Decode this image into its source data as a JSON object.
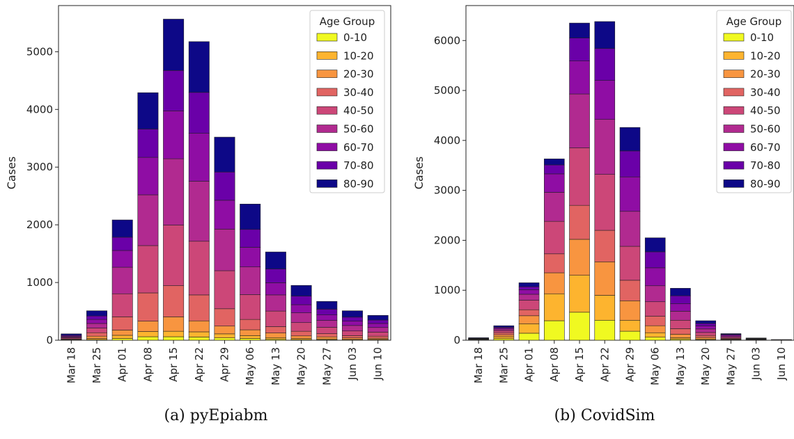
{
  "captions": {
    "a": "(a) pyEpiabm",
    "b": "(b) CovidSim"
  },
  "chart_data": [
    {
      "type": "bar",
      "stacked": true,
      "title": "",
      "xlabel": "",
      "ylabel": "Cases",
      "ylim": [
        0,
        5800
      ],
      "yticks": [
        0,
        1000,
        2000,
        3000,
        4000,
        5000
      ],
      "categories": [
        "Mar 18",
        "Mar 25",
        "Apr 01",
        "Apr 08",
        "Apr 15",
        "Apr 22",
        "Apr 29",
        "May 06",
        "May 13",
        "May 20",
        "May 27",
        "Jun 03",
        "Jun 10"
      ],
      "legend": {
        "title": "Age Group",
        "position": "top-right"
      },
      "colors": [
        "#f0f921",
        "#fdb42f",
        "#f89540",
        "#e16462",
        "#cc4778",
        "#b12a90",
        "#8f0da4",
        "#6a00a8",
        "#0d0887"
      ],
      "series": [
        {
          "name": "0-10",
          "values": [
            2,
            10,
            30,
            60,
            60,
            55,
            40,
            30,
            15,
            10,
            8,
            5,
            5
          ]
        },
        {
          "name": "10-20",
          "values": [
            5,
            20,
            55,
            90,
            95,
            90,
            70,
            50,
            30,
            20,
            15,
            10,
            10
          ]
        },
        {
          "name": "20-30",
          "values": [
            8,
            40,
            90,
            180,
            250,
            190,
            135,
            100,
            80,
            45,
            35,
            25,
            20
          ]
        },
        {
          "name": "30-40",
          "values": [
            10,
            60,
            230,
            490,
            540,
            450,
            300,
            180,
            110,
            80,
            55,
            40,
            35
          ]
        },
        {
          "name": "40-50",
          "values": [
            15,
            80,
            400,
            820,
            1050,
            930,
            660,
            430,
            270,
            150,
            110,
            80,
            70
          ]
        },
        {
          "name": "50-60",
          "values": [
            15,
            80,
            460,
            880,
            1150,
            1040,
            720,
            480,
            280,
            170,
            120,
            95,
            80
          ]
        },
        {
          "name": "60-70",
          "values": [
            15,
            70,
            290,
            650,
            830,
            830,
            500,
            340,
            210,
            140,
            95,
            75,
            70
          ]
        },
        {
          "name": "70-80",
          "values": [
            15,
            60,
            230,
            490,
            700,
            710,
            490,
            310,
            240,
            150,
            100,
            70,
            60
          ]
        },
        {
          "name": "80-90",
          "values": [
            25,
            90,
            300,
            630,
            890,
            880,
            605,
            440,
            295,
            185,
            135,
            110,
            80
          ]
        }
      ]
    },
    {
      "type": "bar",
      "stacked": true,
      "title": "",
      "xlabel": "",
      "ylabel": "Cases",
      "ylim": [
        0,
        6700
      ],
      "yticks": [
        0,
        1000,
        2000,
        3000,
        4000,
        5000,
        6000
      ],
      "categories": [
        "Mar 18",
        "Mar 25",
        "Apr 01",
        "Apr 08",
        "Apr 15",
        "Apr 22",
        "Apr 29",
        "May 06",
        "May 13",
        "May 20",
        "May 27",
        "Jun 03",
        "Jun 10"
      ],
      "legend": {
        "title": "Age Group",
        "position": "top-right"
      },
      "colors": [
        "#f0f921",
        "#fdb42f",
        "#f89540",
        "#e16462",
        "#cc4778",
        "#b12a90",
        "#8f0da4",
        "#6a00a8",
        "#0d0887"
      ],
      "series": [
        {
          "name": "0-10",
          "values": [
            5,
            30,
            140,
            390,
            560,
            400,
            180,
            60,
            20,
            10,
            5,
            2,
            1
          ]
        },
        {
          "name": "10-20",
          "values": [
            5,
            40,
            190,
            540,
            740,
            500,
            220,
            90,
            30,
            15,
            7,
            3,
            1
          ]
        },
        {
          "name": "20-30",
          "values": [
            5,
            40,
            160,
            420,
            720,
            670,
            390,
            140,
            70,
            30,
            10,
            5,
            1
          ]
        },
        {
          "name": "30-40",
          "values": [
            5,
            40,
            120,
            380,
            680,
            630,
            410,
            190,
            110,
            40,
            15,
            5,
            2
          ]
        },
        {
          "name": "40-50",
          "values": [
            5,
            40,
            190,
            650,
            1150,
            1120,
            680,
            290,
            170,
            60,
            20,
            7,
            2
          ]
        },
        {
          "name": "50-60",
          "values": [
            5,
            30,
            120,
            580,
            1080,
            1100,
            700,
            320,
            180,
            70,
            25,
            8,
            2
          ]
        },
        {
          "name": "60-70",
          "values": [
            5,
            20,
            90,
            370,
            660,
            780,
            690,
            360,
            150,
            60,
            20,
            5,
            1
          ]
        },
        {
          "name": "70-80",
          "values": [
            5,
            20,
            60,
            180,
            460,
            640,
            520,
            320,
            160,
            50,
            15,
            5,
            1
          ]
        },
        {
          "name": "80-90",
          "values": [
            10,
            30,
            80,
            120,
            300,
            540,
            470,
            280,
            150,
            55,
            15,
            5,
            1
          ]
        }
      ]
    }
  ]
}
